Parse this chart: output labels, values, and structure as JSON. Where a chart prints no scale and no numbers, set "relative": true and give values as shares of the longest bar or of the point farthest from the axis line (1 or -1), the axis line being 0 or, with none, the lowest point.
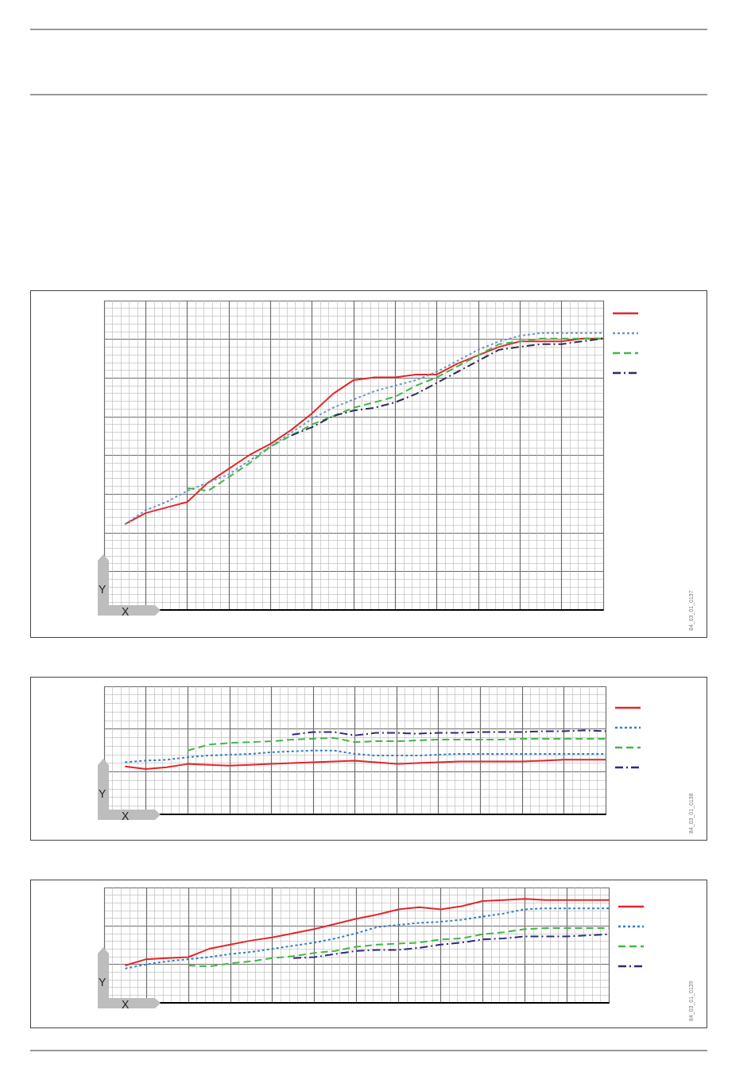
{
  "chart_data": [
    {
      "type": "line",
      "relative": true,
      "xlabel": "X",
      "ylabel": "Y",
      "annotations": [
        "84_03_01_0137"
      ],
      "grid": true,
      "marker": "none",
      "categories": [
        null,
        null,
        null,
        null,
        null,
        null,
        null,
        null,
        null,
        null,
        null,
        null,
        null,
        null,
        null,
        null,
        null,
        null,
        null,
        null,
        null,
        null,
        null,
        null,
        null
      ],
      "series": [
        {
          "color": "#e3262b",
          "line_style": "solid",
          "values": [
            null,
            0.31,
            0.35,
            0.37,
            0.39,
            0.46,
            0.51,
            0.56,
            0.6,
            0.65,
            0.71,
            0.78,
            0.83,
            0.84,
            0.84,
            0.85,
            0.85,
            0.89,
            0.92,
            0.95,
            0.97,
            0.97,
            0.97,
            0.98,
            0.98
          ]
        },
        {
          "color": "#6f95c8",
          "line_style": "dotted",
          "values": [
            null,
            0.31,
            0.36,
            0.39,
            0.43,
            0.46,
            0.49,
            0.54,
            0.59,
            0.64,
            0.69,
            0.73,
            0.76,
            0.79,
            0.81,
            0.83,
            0.86,
            0.9,
            0.94,
            0.97,
            0.99,
            1,
            1,
            1,
            1
          ]
        },
        {
          "color": "#45b649",
          "line_style": "dashed",
          "values": [
            null,
            null,
            null,
            null,
            0.44,
            0.43,
            0.48,
            0.53,
            0.59,
            0.63,
            0.67,
            0.7,
            0.73,
            0.75,
            0.77,
            0.81,
            0.84,
            0.88,
            0.92,
            0.96,
            0.97,
            0.98,
            0.98,
            0.98,
            0.98
          ]
        },
        {
          "color": "#2a2f55",
          "line_style": "dashdot",
          "values": [
            null,
            null,
            null,
            null,
            null,
            null,
            null,
            null,
            null,
            0.63,
            0.66,
            0.7,
            0.72,
            0.73,
            0.75,
            0.78,
            0.82,
            0.86,
            0.9,
            0.94,
            0.95,
            0.96,
            0.96,
            0.97,
            0.98
          ]
        }
      ]
    },
    {
      "type": "line",
      "relative": true,
      "xlabel": "X",
      "ylabel": "Y",
      "annotations": [
        "84_03_01_0138"
      ],
      "grid": true,
      "marker": "none",
      "categories": [
        null,
        null,
        null,
        null,
        null,
        null,
        null,
        null,
        null,
        null,
        null,
        null,
        null,
        null,
        null,
        null,
        null,
        null,
        null,
        null,
        null,
        null,
        null,
        null,
        null
      ],
      "series": [
        {
          "color": "#e3262b",
          "line_style": "solid",
          "values": [
            null,
            0.57,
            0.54,
            0.56,
            0.6,
            0.59,
            0.58,
            0.59,
            0.6,
            0.61,
            0.62,
            0.63,
            0.64,
            0.62,
            0.6,
            0.61,
            0.62,
            0.63,
            0.63,
            0.63,
            0.63,
            0.64,
            0.65,
            0.65,
            0.65
          ]
        },
        {
          "color": "#2f7fc1",
          "line_style": "dotted",
          "values": [
            null,
            0.62,
            0.64,
            0.65,
            0.68,
            0.7,
            0.71,
            0.72,
            0.74,
            0.75,
            0.76,
            0.76,
            0.72,
            0.7,
            0.7,
            0.7,
            0.71,
            0.72,
            0.72,
            0.72,
            0.72,
            0.72,
            0.72,
            0.72,
            0.72
          ]
        },
        {
          "color": "#45b649",
          "line_style": "dashed",
          "values": [
            null,
            null,
            null,
            null,
            0.76,
            0.83,
            0.85,
            0.86,
            0.87,
            0.89,
            0.9,
            0.91,
            0.86,
            0.87,
            0.87,
            0.88,
            0.89,
            0.89,
            0.89,
            0.89,
            0.9,
            0.9,
            0.9,
            0.9,
            0.9
          ]
        },
        {
          "color": "#2e2a7a",
          "line_style": "dashdot",
          "values": [
            null,
            null,
            null,
            null,
            null,
            null,
            null,
            null,
            null,
            0.95,
            0.98,
            0.98,
            0.94,
            0.97,
            0.97,
            0.96,
            0.97,
            0.97,
            0.98,
            0.98,
            0.98,
            0.99,
            0.99,
            1,
            0.99
          ]
        }
      ]
    },
    {
      "type": "line",
      "relative": true,
      "xlabel": "X",
      "ylabel": "Y",
      "annotations": [
        "84_03_01_0139"
      ],
      "grid": true,
      "marker": "none",
      "categories": [
        null,
        null,
        null,
        null,
        null,
        null,
        null,
        null,
        null,
        null,
        null,
        null,
        null,
        null,
        null,
        null,
        null,
        null,
        null,
        null,
        null,
        null,
        null,
        null,
        null
      ],
      "series": [
        {
          "color": "#e3262b",
          "line_style": "solid",
          "values": [
            null,
            0.36,
            0.42,
            0.43,
            0.44,
            0.52,
            0.56,
            0.6,
            0.63,
            0.67,
            0.71,
            0.76,
            0.81,
            0.85,
            0.9,
            0.92,
            0.9,
            0.93,
            0.98,
            0.99,
            1,
            0.99,
            0.99,
            0.99,
            0.99
          ]
        },
        {
          "color": "#2f7fc1",
          "line_style": "dotted",
          "values": [
            null,
            0.33,
            0.37,
            0.4,
            0.42,
            0.44,
            0.47,
            0.49,
            0.52,
            0.55,
            0.58,
            0.62,
            0.67,
            0.73,
            0.75,
            0.77,
            0.78,
            0.8,
            0.83,
            0.86,
            0.9,
            0.91,
            0.91,
            0.91,
            0.91
          ]
        },
        {
          "color": "#45b649",
          "line_style": "dashed",
          "values": [
            null,
            null,
            null,
            null,
            0.36,
            0.35,
            0.38,
            0.4,
            0.43,
            0.45,
            0.48,
            0.5,
            0.54,
            0.56,
            0.57,
            0.58,
            0.61,
            0.62,
            0.66,
            0.68,
            0.71,
            0.72,
            0.72,
            0.72,
            0.72
          ]
        },
        {
          "color": "#2e2a7a",
          "line_style": "dashdot",
          "values": [
            null,
            null,
            null,
            null,
            null,
            null,
            null,
            null,
            null,
            0.43,
            0.44,
            0.47,
            0.5,
            0.51,
            0.51,
            0.53,
            0.56,
            0.58,
            0.61,
            0.62,
            0.64,
            0.64,
            0.64,
            0.65,
            0.66
          ]
        }
      ]
    }
  ]
}
